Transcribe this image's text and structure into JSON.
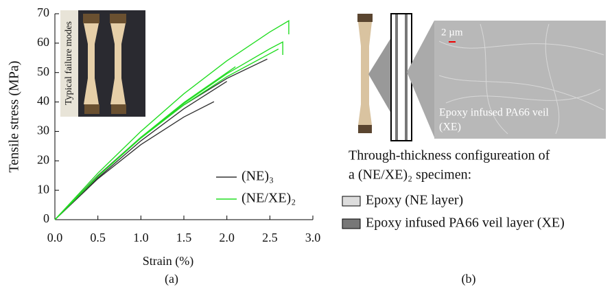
{
  "chart_data": {
    "type": "line",
    "xlabel": "Strain (%)",
    "ylabel": "Tensile stress (MPa)",
    "caption": "(a)",
    "inset_label": "Typical failure modes",
    "xlim": [
      0,
      3.0
    ],
    "xticks": [
      {
        "value": 0,
        "label": "0.0"
      },
      0.5,
      {
        "value": 1,
        "label": "1.0"
      },
      1.5,
      {
        "value": 2,
        "label": "2.0"
      },
      2.5,
      {
        "value": 3,
        "label": "3.0"
      }
    ],
    "ylim": [
      0,
      70
    ],
    "yticks": [
      0,
      10,
      20,
      30,
      40,
      50,
      60,
      70
    ],
    "series": [
      {
        "name": "(NE)₃",
        "color": "#333333",
        "curves": [
          {
            "x": [
              0,
              0.5,
              1,
              1.5,
              2,
              2.47
            ],
            "values": [
              0,
              15,
              28,
              39,
              48,
              54.6
            ]
          },
          {
            "x": [
              0,
              0.5,
              1,
              1.5,
              1.85
            ],
            "values": [
              0,
              13.9,
              25.5,
              34.9,
              40.1
            ]
          },
          {
            "x": [
              0,
              0.5,
              1,
              1.5,
              2
            ],
            "values": [
              0,
              14.2,
              26.8,
              37.7,
              47
            ]
          }
        ]
      },
      {
        "name": "(NE/XE)₂",
        "color": "#22dd22",
        "curves": [
          {
            "x": [
              0,
              0.5,
              1,
              1.5,
              2,
              2.5,
              2.72,
              2.72
            ],
            "values": [
              0,
              15.8,
              30,
              42.8,
              54,
              63.8,
              67.6,
              63
            ]
          },
          {
            "x": [
              0,
              0.5,
              1,
              1.5,
              2,
              2.5,
              2.65,
              2.65
            ],
            "values": [
              0,
              14.7,
              27.9,
              39.5,
              49.6,
              58.1,
              60.4,
              56
            ]
          },
          {
            "x": [
              0,
              0.5,
              1,
              1.5,
              2,
              2.6
            ],
            "values": [
              0,
              14.7,
              27.7,
              39,
              48.6,
              58
            ]
          },
          {
            "x": [
              0,
              0.5,
              1,
              1.5,
              2.1
            ],
            "values": [
              0,
              14.8,
              28,
              39.8,
              52
            ]
          }
        ]
      }
    ]
  },
  "panel_b": {
    "scale_bar": "2 µm",
    "image_label_1": "Epoxy infused PA66 veil",
    "image_label_2": "(XE)",
    "description_1": "Through-thickness configureation of",
    "description_2": "a (NE/XE)₂ specimen:",
    "legend": [
      "Epoxy (NE layer)",
      "Epoxy infused PA66 veil layer (XE)"
    ],
    "caption": "(b)"
  }
}
